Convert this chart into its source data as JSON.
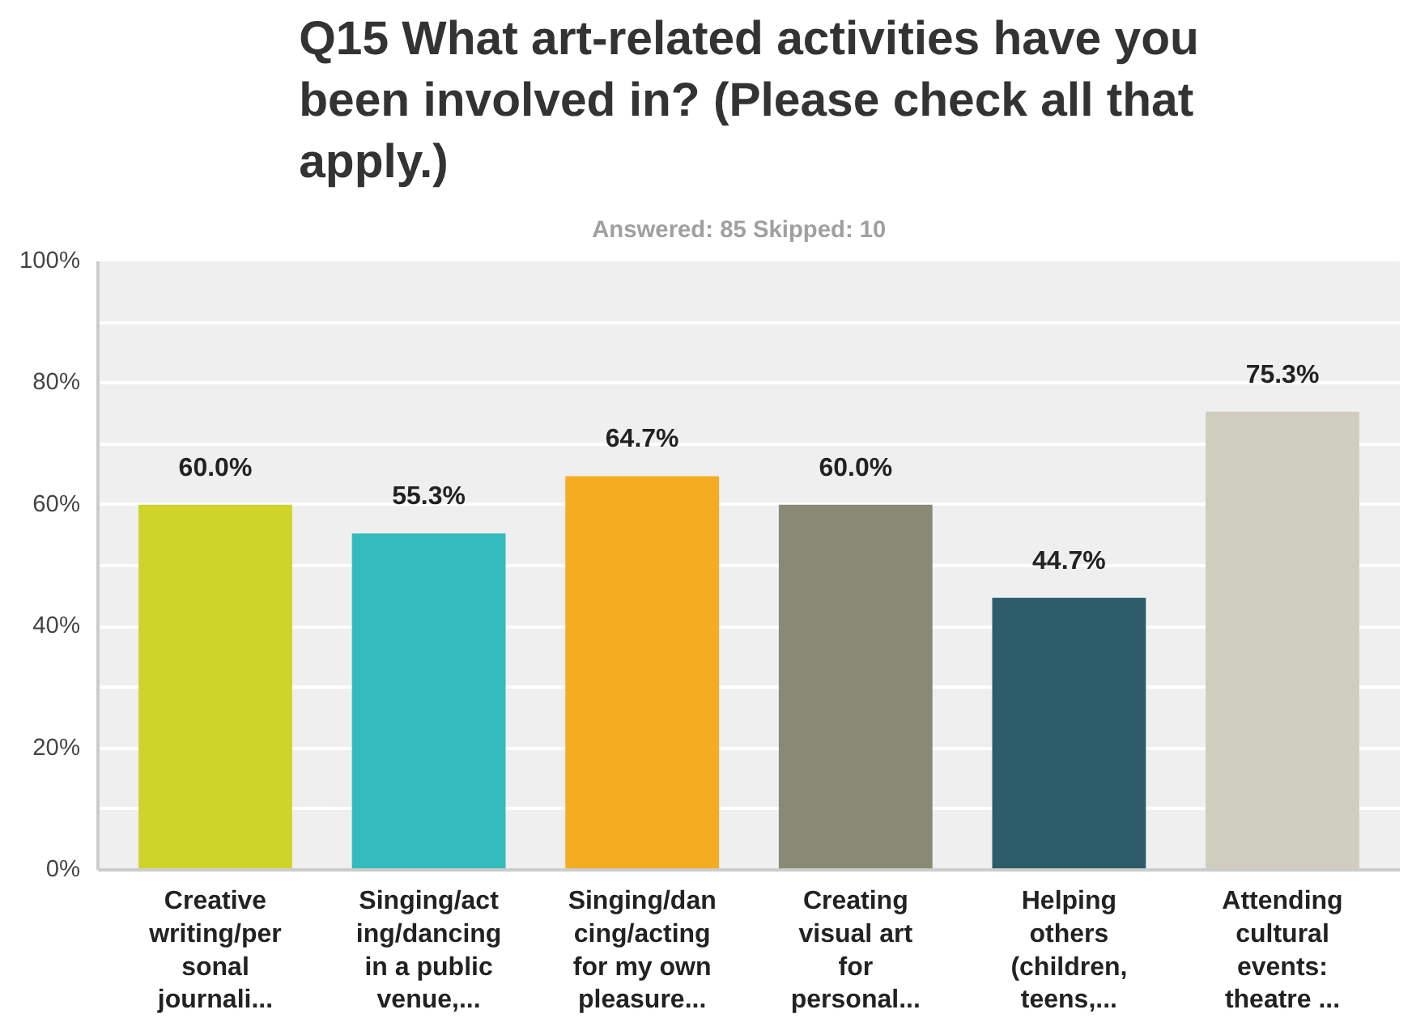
{
  "chart_data": {
    "type": "bar",
    "title": "Q15 What art-related activities have you been involved in? (Please check all that apply.)",
    "subtitle": "Answered: 85    Skipped: 10",
    "categories": [
      "Creative\nwriting/per\nsonal\njournali...",
      "Singing/act\ning/dancing\nin a public\nvenue,...",
      "Singing/dan\ncing/acting\nfor my own\npleasure...",
      "Creating\nvisual art\nfor\npersonal...",
      "Helping\nothers\n(children,\nteens,...",
      "Attending\ncultural\nevents:\ntheatre ..."
    ],
    "values": [
      60.0,
      55.3,
      64.7,
      60.0,
      44.7,
      75.3
    ],
    "colors": [
      "#cfd42a",
      "#33bbbd",
      "#f5ac20",
      "#888a76",
      "#2d5d6b",
      "#cfcdbd"
    ],
    "value_labels": [
      "60.0%",
      "55.3%",
      "64.7%",
      "60.0%",
      "44.7%",
      "75.3%"
    ],
    "ylim": [
      0,
      100
    ],
    "yticks": [
      {
        "value": 0,
        "label": "0%"
      },
      {
        "value": 10,
        "label": null
      },
      {
        "value": 20,
        "label": "20%"
      },
      {
        "value": 30,
        "label": null
      },
      {
        "value": 40,
        "label": "40%"
      },
      {
        "value": 50,
        "label": null
      },
      {
        "value": 60,
        "label": "60%"
      },
      {
        "value": 70,
        "label": null
      },
      {
        "value": 80,
        "label": "80%"
      },
      {
        "value": 90,
        "label": null
      },
      {
        "value": 100,
        "label": "100%"
      }
    ],
    "grid": "y"
  }
}
